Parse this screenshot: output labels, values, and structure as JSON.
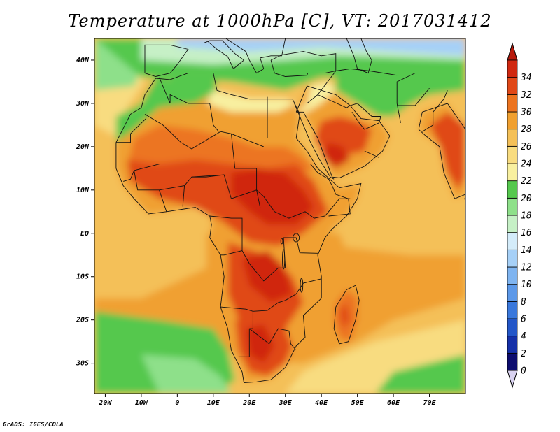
{
  "title": "Temperature at 1000hPa [C], VT: 2017031412",
  "credit": "GrADS: IGES/COLA",
  "map": {
    "type": "filled-contour-map",
    "variable": "Temperature",
    "level": "1000hPa",
    "units": "C",
    "valid_time": "2017031412",
    "lon_range": [
      -23,
      80
    ],
    "lat_range": [
      -37,
      45
    ],
    "x_ticks": [
      {
        "lon": -20,
        "label": "20W"
      },
      {
        "lon": -10,
        "label": "10W"
      },
      {
        "lon": 0,
        "label": "0"
      },
      {
        "lon": 10,
        "label": "10E"
      },
      {
        "lon": 20,
        "label": "20E"
      },
      {
        "lon": 30,
        "label": "30E"
      },
      {
        "lon": 40,
        "label": "40E"
      },
      {
        "lon": 50,
        "label": "50E"
      },
      {
        "lon": 60,
        "label": "60E"
      },
      {
        "lon": 70,
        "label": "70E"
      }
    ],
    "y_ticks": [
      {
        "lat": 40,
        "label": "40N"
      },
      {
        "lat": 30,
        "label": "30N"
      },
      {
        "lat": 20,
        "label": "20N"
      },
      {
        "lat": 10,
        "label": "10N"
      },
      {
        "lat": 0,
        "label": "EQ"
      },
      {
        "lat": -10,
        "label": "10S"
      },
      {
        "lat": -20,
        "label": "20S"
      },
      {
        "lat": -30,
        "label": "30S"
      }
    ]
  },
  "colorbar": {
    "levels": [
      "0",
      "2",
      "4",
      "6",
      "8",
      "10",
      "12",
      "14",
      "16",
      "18",
      "20",
      "22",
      "24",
      "26",
      "28",
      "30",
      "32",
      "34"
    ],
    "colors": [
      "#0c0c6e",
      "#1530a8",
      "#2356c8",
      "#3a78dc",
      "#5c98e8",
      "#7fb4f0",
      "#a6d0f7",
      "#d4ecfa",
      "#c6f0c6",
      "#8ee08a",
      "#55c84e",
      "#f8f0a0",
      "#f8dc80",
      "#f4c058",
      "#f0a030",
      "#ec7420",
      "#e04818",
      "#d02810"
    ],
    "under_color": "#d9d2f0",
    "over_color": "#b81a0c"
  }
}
